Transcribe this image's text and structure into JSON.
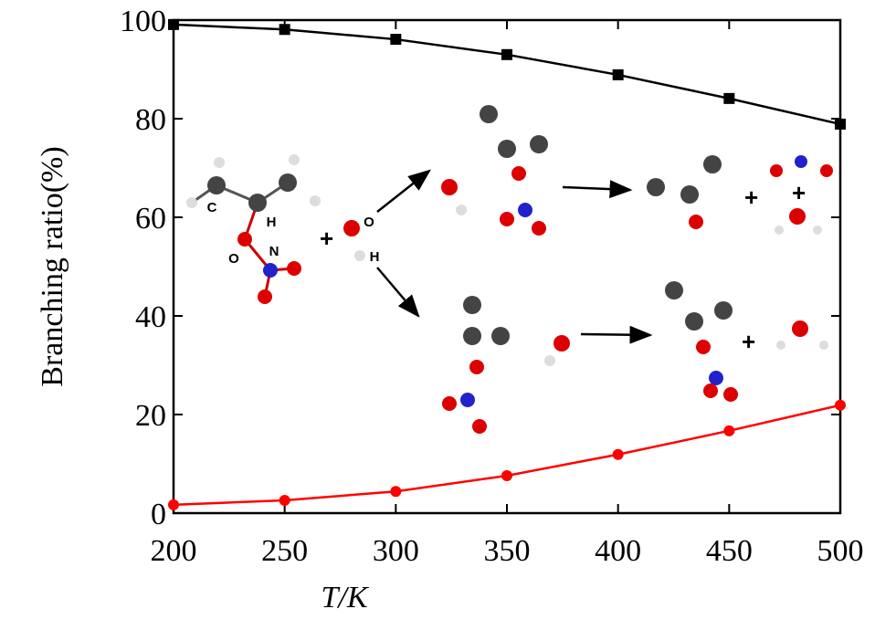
{
  "chart_data": {
    "type": "line",
    "xlabel": "T/K",
    "ylabel": "Branching ratio(%)",
    "x": [
      200,
      250,
      300,
      350,
      400,
      450,
      500
    ],
    "series": [
      {
        "color": "#000000",
        "marker": "square",
        "values": [
          99.1,
          98.1,
          96.1,
          93.0,
          88.9,
          84.1,
          78.9
        ]
      },
      {
        "color": "#ff0000",
        "marker": "circle",
        "values": [
          1.7,
          2.6,
          4.4,
          7.6,
          11.9,
          16.7,
          21.9
        ]
      }
    ],
    "xlim": [
      200,
      500
    ],
    "xticks": [
      200,
      250,
      300,
      350,
      400,
      450,
      500
    ],
    "ylim": [
      0,
      100
    ],
    "yticks": [
      0,
      20,
      40,
      60,
      80,
      100
    ],
    "annotations": [
      "C",
      "H",
      "O",
      "N",
      "O",
      "H"
    ]
  }
}
